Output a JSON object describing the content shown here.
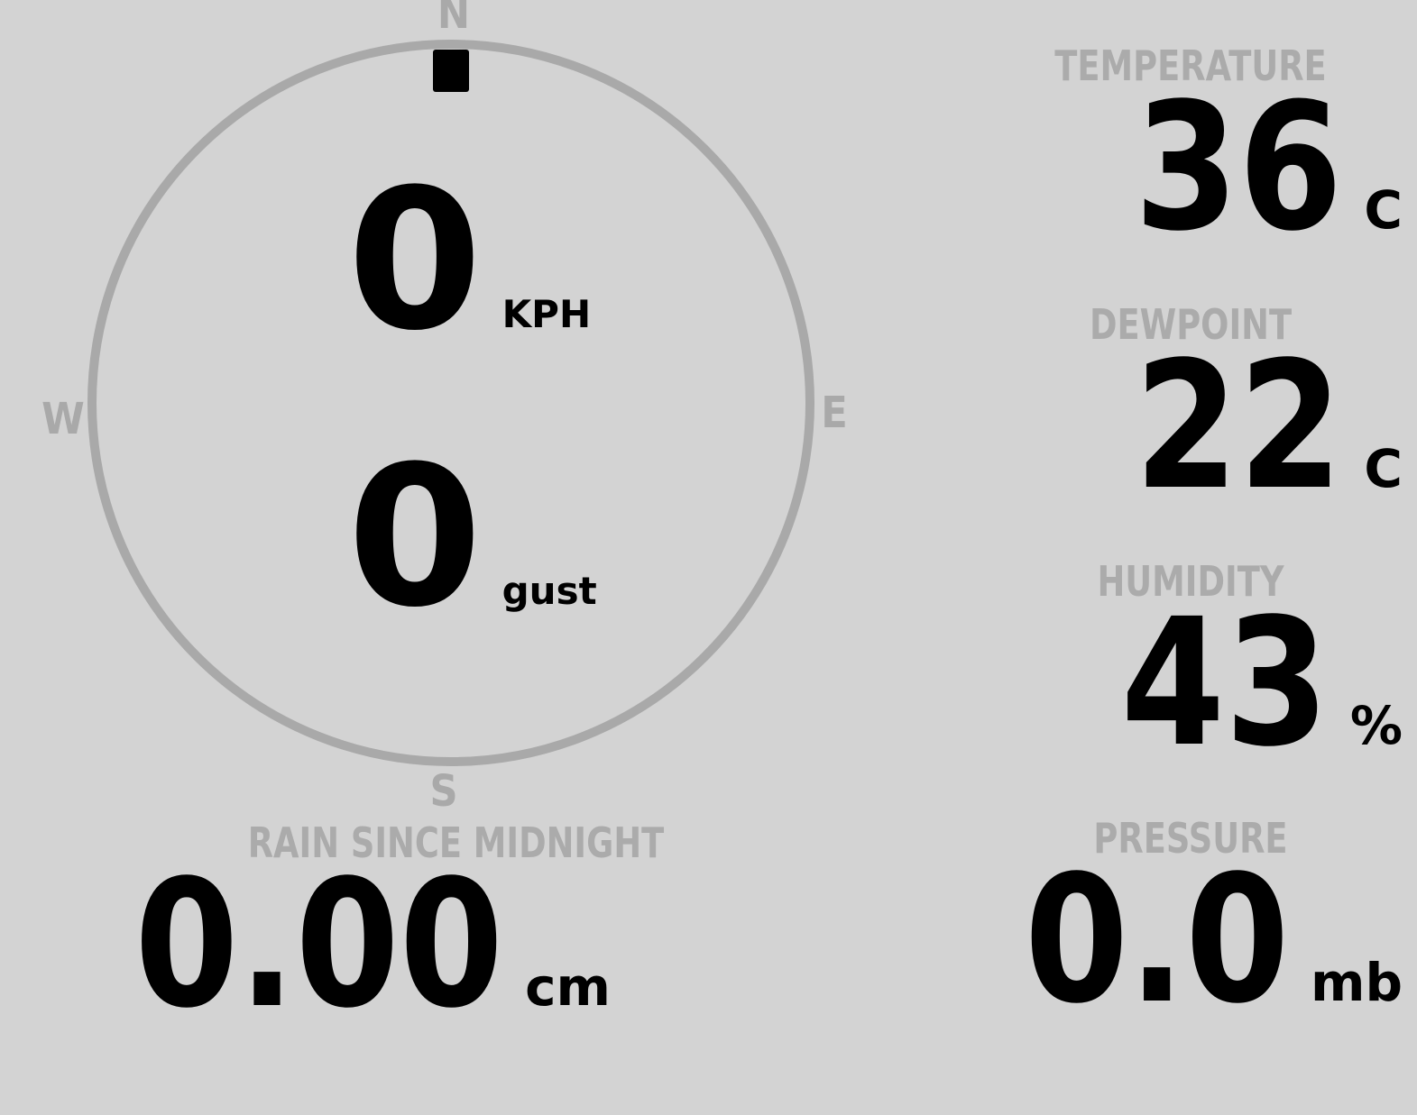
{
  "colors": {
    "background": "#d3d3d3",
    "muted_gray": "#a9a9a9",
    "label_gray": "#ababab",
    "value_black": "#000000"
  },
  "compass": {
    "cardinals": {
      "north": "N",
      "east": "E",
      "south": "S",
      "west": "W"
    },
    "wind_speed": {
      "value": "0",
      "unit": "KPH"
    },
    "wind_gust": {
      "value": "0",
      "unit": "gust"
    }
  },
  "metrics": {
    "temperature": {
      "label": "TEMPERATURE",
      "value": "36",
      "unit": "C"
    },
    "dewpoint": {
      "label": "DEWPOINT",
      "value": "22",
      "unit": "C"
    },
    "humidity": {
      "label": "HUMIDITY",
      "value": "43",
      "unit": "%"
    },
    "pressure": {
      "label": "PRESSURE",
      "value": "0.0",
      "unit": "mb"
    },
    "rain_since_midnight": {
      "label": "RAIN SINCE MIDNIGHT",
      "value": "0.00",
      "unit": "cm"
    }
  }
}
